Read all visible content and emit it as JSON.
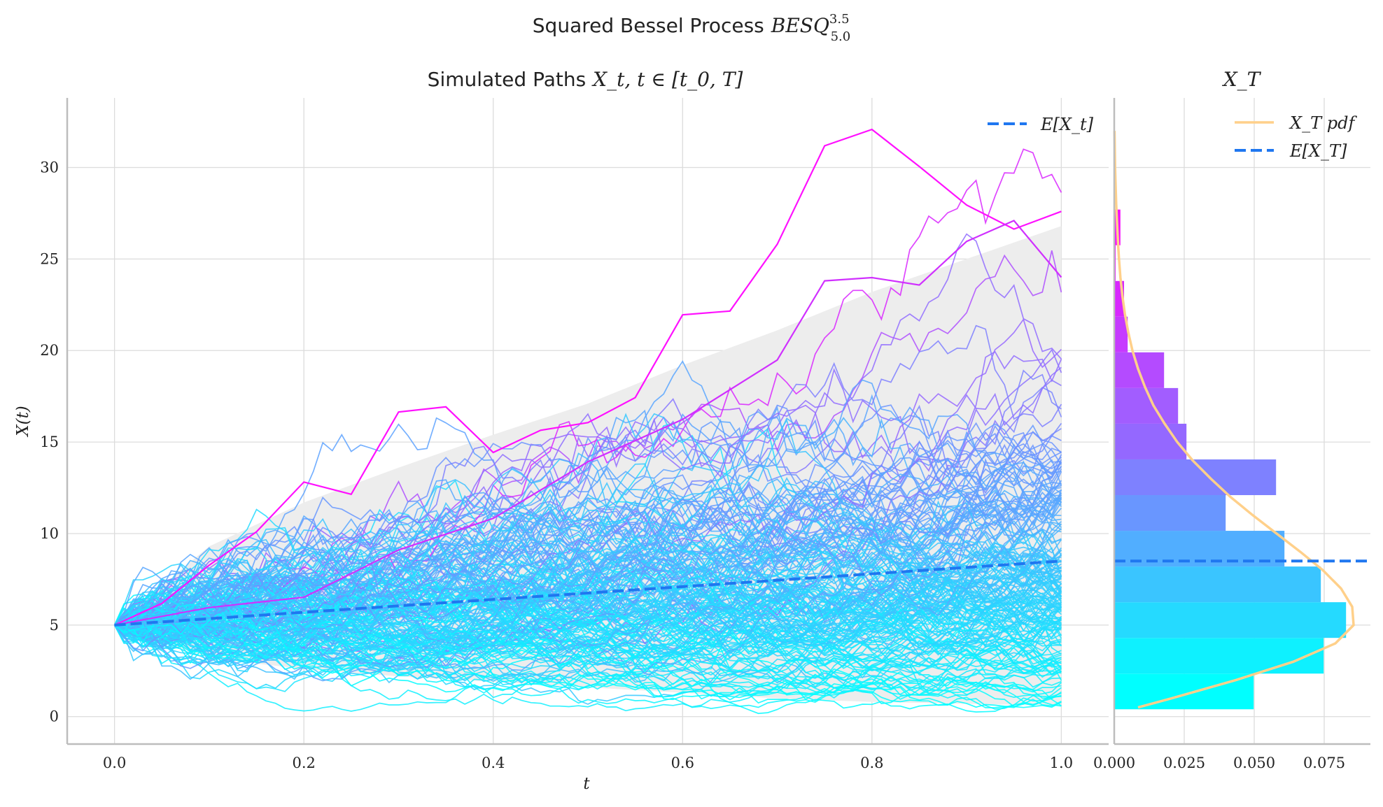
{
  "figure": {
    "suptitle": "Squared Bessel Process",
    "suptitle_math": "BESQ",
    "suptitle_sup": "3.5",
    "suptitle_sub": "5.0"
  },
  "chart_data": [
    {
      "type": "line",
      "title_text": "Simulated Paths",
      "title_math": "X_t, t ∈ [t_0, T]",
      "xlabel": "t",
      "ylabel": "X(t)",
      "xlim": [
        -0.05,
        1.05
      ],
      "ylim": [
        -1.5,
        33.8
      ],
      "xticks": [
        "0.0",
        "0.2",
        "0.4",
        "0.6",
        "0.8",
        "1.0"
      ],
      "yticks": [
        "0",
        "5",
        "10",
        "15",
        "20",
        "25",
        "30"
      ],
      "grid": true,
      "legend": {
        "position": "top-right",
        "entries": [
          {
            "label": "E[X_t]",
            "color": "#1F77F0",
            "style": "dashed"
          }
        ]
      },
      "x0": 5.0,
      "t_range": [
        0,
        1
      ],
      "n_paths": 200,
      "n_steps": 100,
      "colormap": "cool (cyan #00FFFF to magenta #FF00FF by final value)",
      "mean": {
        "t": [
          0,
          1
        ],
        "values": [
          5.0,
          8.5
        ],
        "color": "#1F77F0"
      },
      "band": {
        "color": "#EDEDED",
        "t": [
          0,
          0.1,
          0.2,
          0.3,
          0.4,
          0.5,
          0.6,
          0.7,
          0.8,
          0.9,
          1.0
        ],
        "upper": [
          5.0,
          9.3,
          11.7,
          13.6,
          15.4,
          17.1,
          19.2,
          21.1,
          23.2,
          25.0,
          26.8
        ],
        "lower": [
          5.0,
          3.2,
          2.6,
          2.2,
          1.9,
          1.6,
          1.3,
          1.0,
          0.8,
          0.7,
          0.6
        ]
      },
      "highlight_paths": [
        {
          "name": "top path",
          "t": [
            0,
            0.05,
            0.1,
            0.15,
            0.2,
            0.25,
            0.3,
            0.35,
            0.4,
            0.45,
            0.5,
            0.55,
            0.6,
            0.65,
            0.7,
            0.75,
            0.8,
            0.85,
            0.9,
            0.95,
            1.0
          ],
          "values": [
            5.0,
            6.5,
            8.0,
            9.5,
            12.8,
            12.5,
            16.5,
            17.5,
            14.0,
            16.0,
            16.5,
            17.8,
            21.5,
            22.5,
            26.5,
            30.5,
            31.4,
            30.0,
            28.0,
            27.0,
            27.6
          ]
        },
        {
          "name": "second path",
          "t": [
            0,
            0.1,
            0.2,
            0.3,
            0.4,
            0.5,
            0.6,
            0.7,
            0.75,
            0.8,
            0.85,
            0.9,
            0.95,
            1.0
          ],
          "values": [
            5.0,
            5.5,
            6.5,
            8.5,
            11.0,
            14.0,
            16.0,
            19.5,
            23.5,
            24.2,
            24.2,
            25.5,
            26.8,
            24.0
          ]
        }
      ]
    },
    {
      "type": "histogram",
      "orientation": "horizontal",
      "title_math": "X_T",
      "xlim": [
        0,
        0.0915
      ],
      "ylim": [
        -1.5,
        33.8
      ],
      "xticks": [
        0,
        0.025,
        0.05,
        0.075
      ],
      "xtick_labels": [
        "0.000",
        "0.025",
        "0.050",
        "0.075"
      ],
      "grid": true,
      "legend": {
        "position": "top-right",
        "entries": [
          {
            "label": "X_T pdf",
            "color": "#FFD08A",
            "style": "solid"
          },
          {
            "label": "E[X_T]",
            "color": "#1F77F0",
            "style": "dashed"
          }
        ]
      },
      "bin_edges": [
        0.4,
        2.35,
        4.3,
        6.25,
        8.2,
        10.15,
        12.1,
        14.05,
        16.0,
        17.95,
        19.9,
        21.85,
        23.8,
        25.75,
        27.7
      ],
      "densities": [
        0.0498,
        0.0748,
        0.0828,
        0.0738,
        0.0608,
        0.0398,
        0.0578,
        0.0258,
        0.0228,
        0.0178,
        0.0048,
        0.0035,
        0.0005,
        0.0022
      ],
      "bar_colors": [
        "#00FFFF",
        "#0EF1FF",
        "#25DAFF",
        "#3AC5FF",
        "#51AEFF",
        "#6996FF",
        "#7E81FF",
        "#9468FF",
        "#A25DFF",
        "#B44BFF",
        "#C63AFF",
        "#D827FF",
        "#EA15FF",
        "#F60CFF"
      ],
      "pdf": {
        "y": [
          0.5,
          1,
          2,
          3,
          4,
          5,
          6,
          7,
          8,
          9,
          10,
          11,
          12,
          13,
          14,
          15,
          16,
          17,
          18,
          19,
          20,
          21,
          22,
          23,
          24,
          25,
          26,
          27,
          28,
          30,
          32
        ],
        "density": [
          0.0085,
          0.0205,
          0.0435,
          0.064,
          0.079,
          0.0855,
          0.085,
          0.081,
          0.0745,
          0.0665,
          0.058,
          0.0495,
          0.0415,
          0.0345,
          0.028,
          0.0225,
          0.018,
          0.014,
          0.011,
          0.0085,
          0.0065,
          0.005,
          0.0038,
          0.0029,
          0.0022,
          0.0017,
          0.0013,
          0.001,
          0.0007,
          0.0003,
          0.0001
        ]
      },
      "mean_value": 8.5
    }
  ]
}
